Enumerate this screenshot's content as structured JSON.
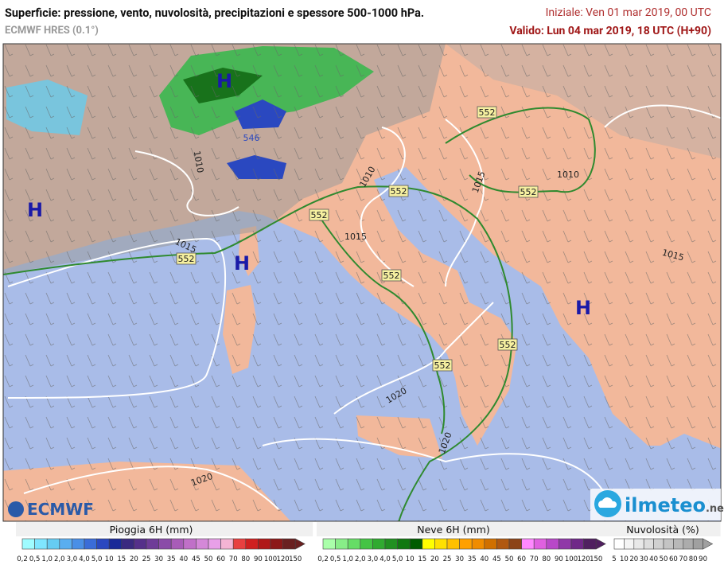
{
  "header": {
    "title": "Superficie: pressione, vento, nuvolosità, precipitazioni e spessore 500-1000 hPa.",
    "model": "ECMWF HRES (0.1°)",
    "init": "Iniziale: Ven 01 mar 2019, 00 UTC",
    "valid": "Valido: Lun 04 mar 2019, 18 UTC (H+90)"
  },
  "map": {
    "pressure_centers": [
      "H",
      "H",
      "H",
      "H"
    ],
    "isobar_labels": [
      "1010",
      "1015",
      "1015",
      "1010",
      "1015",
      "1010",
      "1015",
      "1020",
      "1020",
      "1020"
    ],
    "thickness_labels": [
      "552",
      "552",
      "552",
      "552",
      "552",
      "552",
      "552",
      "552",
      "546"
    ]
  },
  "logos": {
    "left": "ECMWF",
    "right": "ilmeteo",
    "right_suffix": ".net"
  },
  "legends": [
    {
      "title": "Pioggia 6H (mm)",
      "labels": [
        "0,2",
        "0,5",
        "1,0",
        "2,0",
        "3,0",
        "4,0",
        "5,0",
        "10",
        "15",
        "20",
        "25",
        "30",
        "35",
        "40",
        "45",
        "50",
        "60",
        "70",
        "80",
        "90",
        "100",
        "120",
        "150"
      ],
      "colors": [
        "#9ffcff",
        "#7fe6ff",
        "#66ccf2",
        "#5aaef0",
        "#4a8fe6",
        "#3a6cd8",
        "#2a48c0",
        "#1a2a98",
        "#3a2a80",
        "#55308a",
        "#6e3c98",
        "#8a4ca8",
        "#a85cb8",
        "#c070c8",
        "#d488d8",
        "#e8a0e8",
        "#f4b4d4",
        "#e84040",
        "#d02020",
        "#b01818",
        "#8c1818",
        "#6a2020"
      ]
    },
    {
      "title": "Neve 6H (mm)",
      "labels": [
        "0,2",
        "0,5",
        "1,0",
        "2,0",
        "3,0",
        "4,0",
        "5,0",
        "10",
        "15",
        "20",
        "25",
        "30",
        "35",
        "40",
        "45",
        "50",
        "60",
        "70",
        "80",
        "90",
        "100",
        "120",
        "150"
      ],
      "colors": [
        "#aaffaa",
        "#88ee88",
        "#66dd66",
        "#44c444",
        "#30aa30",
        "#209020",
        "#107810",
        "#005c00",
        "#ffff00",
        "#ffe000",
        "#ffc000",
        "#ffa000",
        "#f08c00",
        "#d07000",
        "#b05810",
        "#8c4418",
        "#ff88ff",
        "#e060e0",
        "#b848c8",
        "#9038a8",
        "#702888",
        "#502060"
      ]
    },
    {
      "title": "Nuvolosità (%)",
      "labels": [
        "5",
        "10",
        "20",
        "30",
        "40",
        "50",
        "60",
        "70",
        "80",
        "90"
      ],
      "colors": [
        "#ffffff",
        "#f4f4f4",
        "#e8e8e8",
        "#dddddd",
        "#d0d0d0",
        "#c4c4c4",
        "#b8b8b8",
        "#acacac",
        "#a0a0a0"
      ]
    }
  ]
}
